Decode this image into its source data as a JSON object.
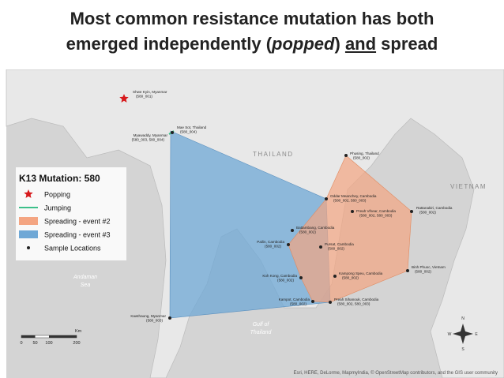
{
  "title": {
    "line1": "Most common resistance mutation has both",
    "line2": {
      "before": "emerged independently (",
      "italic": "popped",
      "middle": ") ",
      "underlined": "and",
      "after": " spread"
    }
  },
  "map": {
    "country_labels": [
      "THAILAND",
      "VIETNAM"
    ],
    "sea_labels": [
      {
        "line1": "Andaman",
        "line2": "Sea"
      },
      {
        "line1": "Gulf of",
        "line2": "Thailand"
      }
    ],
    "locations": [
      {
        "name": "Shwe Kyin, Myanmar",
        "codes": "(580_001)"
      },
      {
        "name": "Mae Sot, Thailand",
        "codes": "(580_004)"
      },
      {
        "name": "Myawaddy, Myanmar",
        "codes": "(580_003, 580_004)"
      },
      {
        "name": "Phusing, Thailand",
        "codes": "(580_002)"
      },
      {
        "name": "Oddar Meanchey, Cambodia",
        "codes": "(580_002, 580_003)"
      },
      {
        "name": "Preah Vihear, Cambodia",
        "codes": "(580_002, 580_003)"
      },
      {
        "name": "Rattanakiri, Cambodia",
        "codes": "(580_002)"
      },
      {
        "name": "Battambang, Cambodia",
        "codes": "(580_002)"
      },
      {
        "name": "Pailin, Cambodia",
        "codes": "(580_002)"
      },
      {
        "name": "Pursat, Cambodia",
        "codes": "(580_002)"
      },
      {
        "name": "Koh Kong, Cambodia",
        "codes": "(580_002)"
      },
      {
        "name": "Kampong Speu, Cambodia",
        "codes": "(580_002)"
      },
      {
        "name": "Binh Phuoc, Vietnam",
        "codes": "(580_002)"
      },
      {
        "name": "Kampot, Cambodia",
        "codes": "(580_002)"
      },
      {
        "name": "Preah Sihanouk, Cambodia",
        "codes": "(580_002, 580_003)"
      },
      {
        "name": "Kawthaung, Myanmar",
        "codes": "(580_003)"
      }
    ],
    "legend": {
      "title": "K13 Mutation: 580",
      "items": [
        "Popping",
        "Jumping",
        "Spreading - event #2",
        "Spreading - event #3",
        "Sample Locations"
      ]
    },
    "scale": {
      "ticks": [
        "0",
        "50",
        "100",
        "200"
      ],
      "unit": "Km"
    },
    "compass": [
      "N",
      "E",
      "S",
      "W"
    ],
    "attribution": "Esri, HERE, DeLorme, MapmyIndia, © OpenStreetMap contributors, and the GIS user community"
  }
}
